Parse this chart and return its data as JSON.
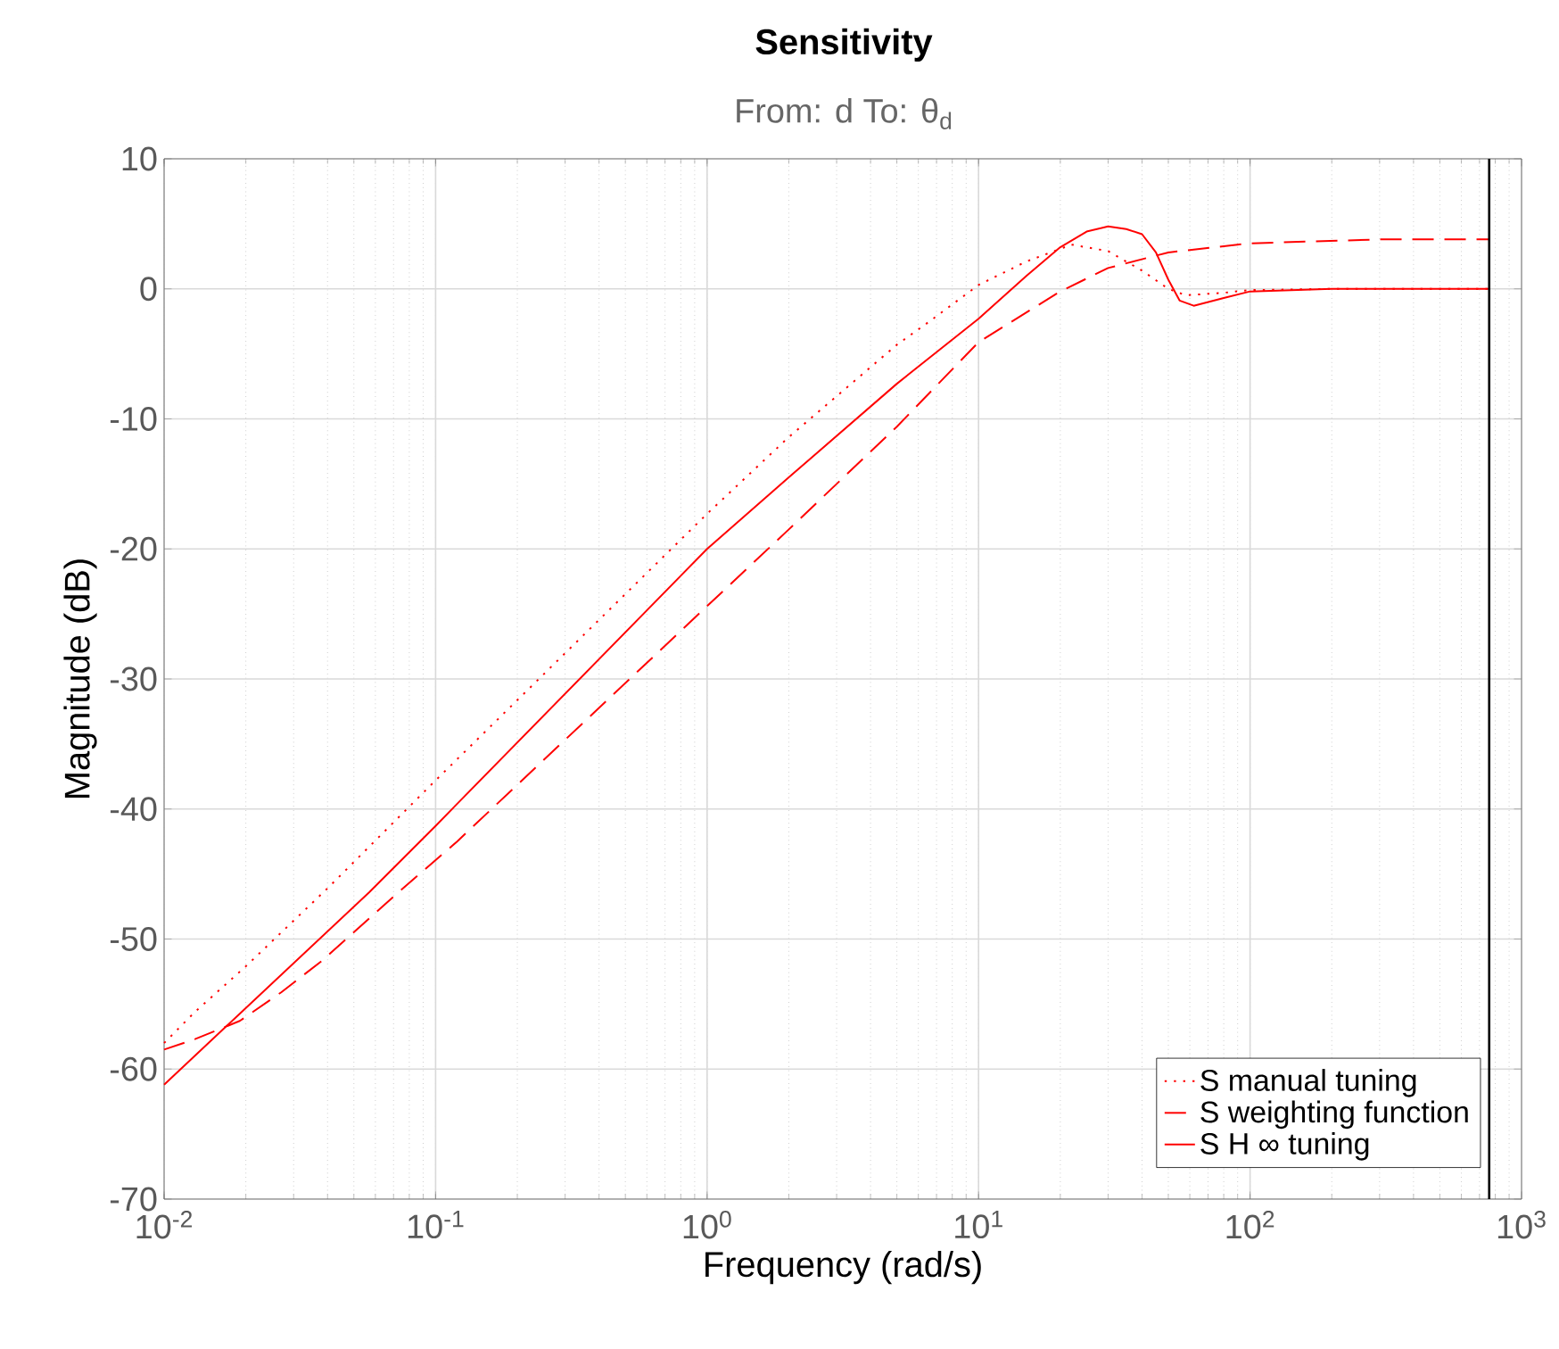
{
  "chart_data": {
    "type": "line",
    "title": "Sensitivity",
    "subtitle": "From: d  To: θ$_{d}$",
    "xlabel": "Frequency  (rad/s)",
    "ylabel": "Magnitude (dB)",
    "log": "x",
    "grid": true,
    "legend": "bottom right",
    "xlim": [
      0.01,
      1000
    ],
    "ylim": [
      -70,
      10
    ],
    "xticks": [
      {
        "value": 0.01,
        "label": "10$^{-2}$"
      },
      {
        "value": 0.1,
        "label": "10$^{-1}$"
      },
      {
        "value": 1,
        "label": "10$^{0}$"
      },
      {
        "value": 10,
        "label": "10$^{1}$"
      },
      {
        "value": 100,
        "label": "10$^{2}$"
      },
      {
        "value": 1000,
        "label": "10$^{3}$"
      }
    ],
    "yticks": [
      -70,
      -60,
      -50,
      -40,
      -30,
      -20,
      -10,
      0,
      10
    ],
    "ref_lines": [
      {
        "axis": "x",
        "value": 760,
        "color": "#000000"
      }
    ],
    "series": [
      {
        "name": "S manual tuning",
        "color": "#ff0000",
        "line_style": "dotted",
        "x": [
          0.01,
          0.013,
          0.02,
          0.04,
          0.1,
          1,
          2,
          5,
          6.6,
          10,
          15,
          22,
          30,
          40,
          50,
          58,
          80,
          100,
          200,
          760
        ],
        "values": [
          -58.0,
          -55.6,
          -52.1,
          -46.1,
          -37.8,
          -17.3,
          -11.4,
          -4.3,
          -2.5,
          0.3,
          2.1,
          3.4,
          2.9,
          1.4,
          0.0,
          -0.5,
          -0.3,
          -0.1,
          0.0,
          0.0
        ]
      },
      {
        "name": "S weighting function",
        "color": "#ff0000",
        "line_style": "dashed",
        "x": [
          0.01,
          0.013,
          0.019,
          0.027,
          0.038,
          0.073,
          0.12,
          1,
          2,
          5,
          10,
          20,
          30,
          50,
          100,
          300,
          760
        ],
        "values": [
          -58.5,
          -57.7,
          -56.3,
          -54.1,
          -51.7,
          -46.4,
          -42.5,
          -24.4,
          -18.5,
          -10.6,
          -4.1,
          -0.2,
          1.6,
          2.8,
          3.5,
          3.8,
          3.8
        ]
      },
      {
        "name": "S H ∞ tuning",
        "color": "#ff0000",
        "line_style": "solid",
        "x": [
          0.01,
          0.057,
          0.1,
          1,
          2,
          5,
          10,
          15,
          20,
          25,
          30,
          35,
          40,
          45,
          50,
          55,
          62,
          80,
          100,
          200,
          760
        ],
        "values": [
          -61.2,
          -46.4,
          -41.3,
          -20.0,
          -14.5,
          -7.3,
          -2.3,
          1.0,
          3.2,
          4.4,
          4.8,
          4.6,
          4.2,
          2.8,
          0.7,
          -0.9,
          -1.3,
          -0.7,
          -0.2,
          0.0,
          0.0
        ]
      }
    ]
  }
}
